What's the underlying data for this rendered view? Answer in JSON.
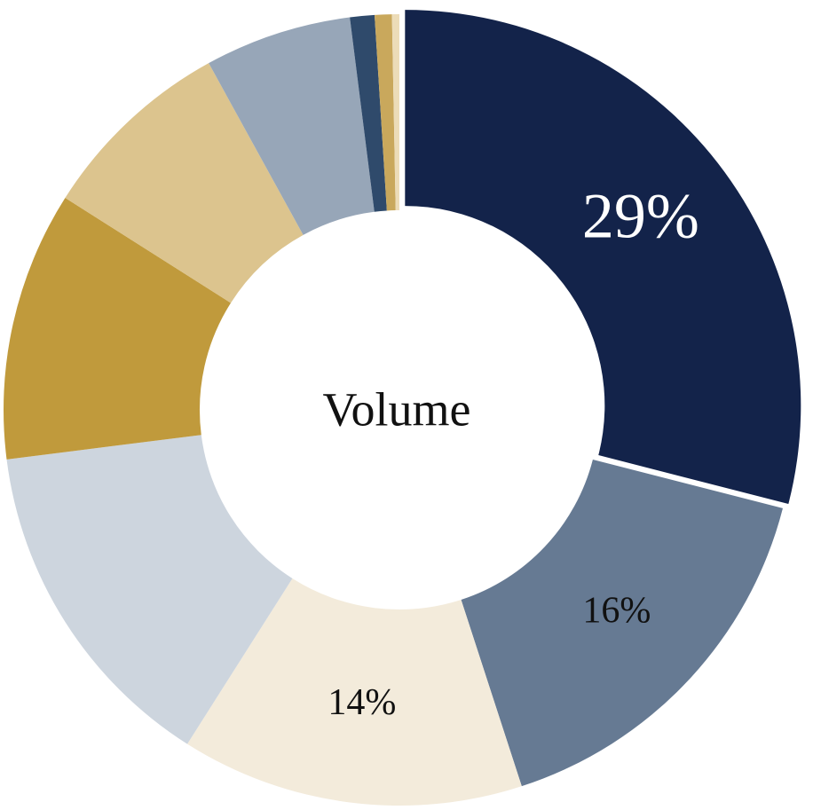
{
  "chart_data": {
    "type": "donut",
    "center_label": "Volume",
    "values": [
      29,
      16,
      14,
      14,
      11,
      8,
      6,
      1,
      0.7,
      0.3
    ],
    "value_labels": [
      "29%",
      "16%",
      "14%",
      null,
      null,
      null,
      null,
      null,
      null,
      null
    ],
    "colors": [
      "#13234a",
      "#667a93",
      "#f3ebdb",
      "#cdd5de",
      "#c09a3c",
      "#dcc48e",
      "#97a6b8",
      "#2f4a6b",
      "#c9a85c",
      "#ecdcb8"
    ]
  }
}
